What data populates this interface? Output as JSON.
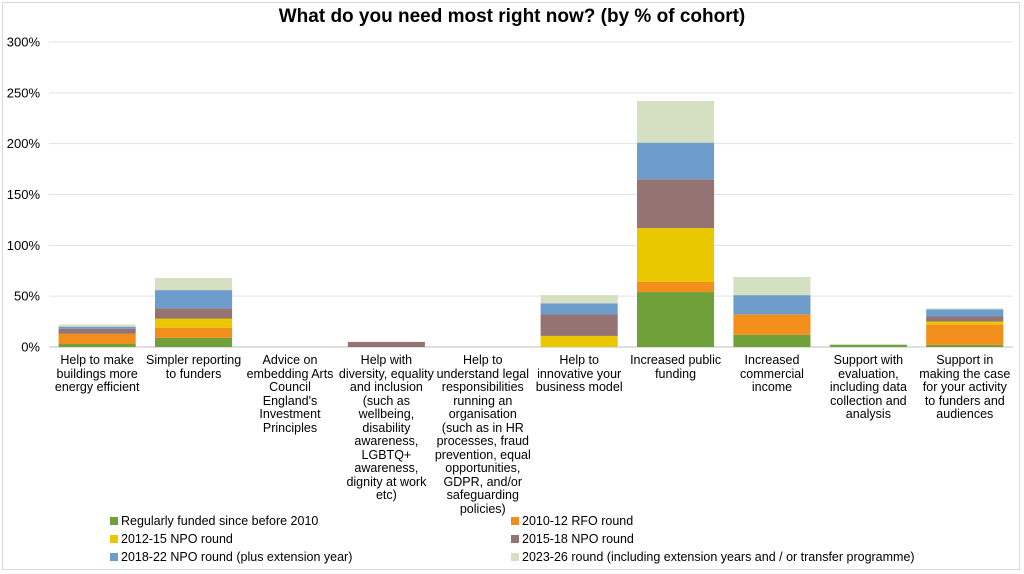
{
  "chart_data": {
    "type": "bar",
    "stacked": true,
    "title": "What do you need most right now? (by % of cohort)",
    "xlabel": "",
    "ylabel": "",
    "ylim": [
      0,
      300
    ],
    "ytick_labels": [
      "0%",
      "50%",
      "100%",
      "150%",
      "200%",
      "250%",
      "300%"
    ],
    "grid": true,
    "legend_position": "bottom",
    "categories": [
      "Help to make buildings more energy efficient",
      "Simpler reporting to funders",
      "Advice on embedding Arts Council England's Investment Principles",
      "Help with diversity, equality and inclusion (such as wellbeing, disability awareness, LGBTQ+ awareness, dignity at work etc)",
      "Help to understand legal responsibilities running an organisation (such as in HR processes, fraud prevention, equal opportunities, GDPR, and/or safeguarding policies)",
      "Help to innovative your business model",
      "Increased public funding",
      "Increased commercial income",
      "Support with evaluation, including data collection and analysis",
      "Support in making the case for your activity to funders and audiences"
    ],
    "category_display": [
      "Help to make\nbuildings more\nenergy efficient",
      "Simpler reporting\nto funders",
      "Advice on\nembedding Arts\nCouncil\nEngland's\nInvestment\nPrinciples",
      "Help with\ndiversity, equality\nand inclusion\n(such as\nwellbeing,\ndisability\nawareness,\nLGBTQ+\nawareness,\ndignity at work\netc)",
      "Help to\nunderstand legal\nresponsibilities\nrunning an\norganisation\n(such as in HR\nprocesses, fraud\nprevention, equal\nopportunities,\nGDPR, and/or\nsafeguarding\npolicies)",
      "Help to\ninnovative your\nbusiness model",
      "Increased public\nfunding",
      "Increased\ncommercial\nincome",
      "Support with\nevaluation,\nincluding data\ncollection and\nanalysis",
      "Support in\nmaking the case\nfor your activity\nto funders and\naudiences"
    ],
    "series": [
      {
        "name": "Regularly funded since before 2010",
        "color": "#70a03a",
        "values": [
          3,
          9,
          0,
          0,
          0,
          0,
          54,
          12,
          2,
          2
        ]
      },
      {
        "name": "2010-12 RFO round",
        "color": "#f28e1c",
        "values": [
          10,
          10,
          0,
          0,
          0,
          0,
          10,
          20,
          0,
          20
        ]
      },
      {
        "name": "2012-15 NPO round",
        "color": "#e9c800",
        "values": [
          0,
          9,
          0,
          0,
          0,
          11,
          53,
          0,
          0,
          3
        ]
      },
      {
        "name": "2015-18 NPO round",
        "color": "#957373",
        "values": [
          5,
          10,
          0,
          5,
          0,
          21,
          48,
          0,
          0,
          5
        ]
      },
      {
        "name": "2018-22 NPO round (plus extension year)",
        "color": "#6f9dcb",
        "values": [
          2,
          18,
          0,
          0,
          0,
          11,
          36,
          19,
          0,
          7
        ]
      },
      {
        "name": "2023-26 round (including extension years and / or transfer programme)",
        "color": "#d5dfc2",
        "values": [
          2,
          12,
          0,
          0,
          0,
          8,
          41,
          18,
          1,
          1
        ]
      }
    ]
  }
}
